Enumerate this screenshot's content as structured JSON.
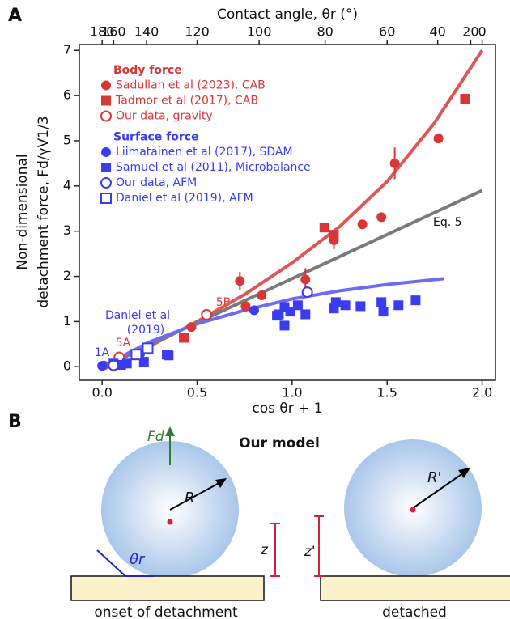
{
  "panel_labels": [
    "A",
    "B"
  ],
  "chart_data": {
    "type": "scatter",
    "x2label": "Contact angle, θr (°)",
    "xlabel": "cos θr + 1",
    "ylabel": [
      "Non-dimensional",
      "detachment force, Fd/γV1/3"
    ],
    "xlim": [
      -0.12,
      2.07
    ],
    "ylim": [
      -0.3,
      7.13
    ],
    "xticks": [
      {
        "value": 0,
        "label": "0.0"
      },
      {
        "value": 0.5,
        "label": "0.5"
      },
      {
        "value": 1,
        "label": "1.0"
      },
      {
        "value": 1.5,
        "label": "1.5"
      },
      {
        "value": 2,
        "label": "2.0"
      }
    ],
    "yticks": [
      0,
      1,
      2,
      3,
      4,
      5,
      6,
      7
    ],
    "x2ticks": [
      180,
      160,
      140,
      120,
      100,
      80,
      60,
      40,
      20,
      0
    ],
    "groups": [
      {
        "title": "Body force",
        "color": "#d93636",
        "series": [
          {
            "name": "Sadullah et al (2023), CAB",
            "marker": "circle",
            "filled": true,
            "x": [
              0.01,
              0.47,
              0.725,
              0.755,
              0.84,
              1.07,
              1.22,
              1.37,
              1.47,
              1.54,
              1.77
            ],
            "values": [
              0.03,
              0.88,
              1.9,
              1.34,
              1.58,
              1.93,
              2.8,
              3.15,
              3.31,
              4.5,
              5.05
            ],
            "errors": [
              null,
              null,
              0.2,
              null,
              null,
              0.25,
              0.2,
              null,
              null,
              0.35,
              null
            ]
          },
          {
            "name": "Tadmor et al (2017), CAB",
            "marker": "square",
            "filled": true,
            "x": [
              0.43,
              1.17,
              1.22,
              1.91
            ],
            "values": [
              0.64,
              3.08,
              2.92,
              5.93
            ]
          },
          {
            "name": "Our data, gravity",
            "marker": "circle",
            "filled": false,
            "x": [
              0.09,
              0.55
            ],
            "values": [
              0.21,
              1.15
            ]
          }
        ]
      },
      {
        "title": "Surface force",
        "color": "#3b3bf0",
        "series": [
          {
            "name": "Liimatainen et al (2017), SDAM",
            "marker": "circle",
            "filled": true,
            "x": [
              0.0,
              0.2,
              0.8
            ],
            "values": [
              0.02,
              0.29,
              1.25
            ]
          },
          {
            "name": "Samuel et al (2011), Microbalance",
            "marker": "square",
            "filled": true,
            "x": [
              0.06,
              0.1,
              0.13,
              0.22,
              0.34,
              0.35,
              0.92,
              0.93,
              0.96,
              0.99,
              1.03,
              1.07,
              0.96,
              1.22,
              1.23,
              1.28,
              1.36,
              1.47,
              1.48,
              1.56,
              1.65
            ],
            "values": [
              0.07,
              0.04,
              0.07,
              0.11,
              0.27,
              0.25,
              1.13,
              1.16,
              1.32,
              1.22,
              1.36,
              1.16,
              0.91,
              1.29,
              1.43,
              1.36,
              1.34,
              1.43,
              1.22,
              1.36,
              1.47
            ]
          },
          {
            "name": "Our data, AFM",
            "marker": "circle",
            "filled": false,
            "x": [
              0.06,
              1.08
            ],
            "values": [
              0.03,
              1.65
            ]
          },
          {
            "name": "Daniel et al (2019), AFM",
            "marker": "square",
            "filled": false,
            "x": [
              0.18,
              0.24
            ],
            "values": [
              0.27,
              0.41
            ]
          }
        ]
      }
    ],
    "curves": [
      {
        "color": "#e05555",
        "x": [
          0,
          0.25,
          0.5,
          0.75,
          1.0,
          1.25,
          1.5,
          1.75,
          2.0
        ],
        "values": [
          0,
          0.45,
          1.0,
          1.6,
          2.3,
          3.1,
          4.1,
          5.4,
          7.0
        ]
      },
      {
        "color": "#7a7a7a",
        "x": [
          0,
          2.0
        ],
        "values": [
          0,
          3.9
        ]
      },
      {
        "color": "#6b6bf5",
        "x": [
          0,
          0.25,
          0.5,
          0.75,
          1.0,
          1.25,
          1.5,
          1.8
        ],
        "values": [
          0,
          0.55,
          0.95,
          1.25,
          1.5,
          1.68,
          1.82,
          1.95
        ]
      }
    ],
    "annotations": [
      "Eq. 5",
      "5B",
      "5A",
      "1A",
      "Daniel et al",
      "(2019)"
    ]
  },
  "diagram": {
    "title": "Our model",
    "force": "Fd",
    "radius": "R",
    "radius_detached": "R'",
    "height": "z",
    "height_detached": "z'",
    "angle": "θr",
    "left_caption": "onset of detachment",
    "right_caption": "detached"
  }
}
